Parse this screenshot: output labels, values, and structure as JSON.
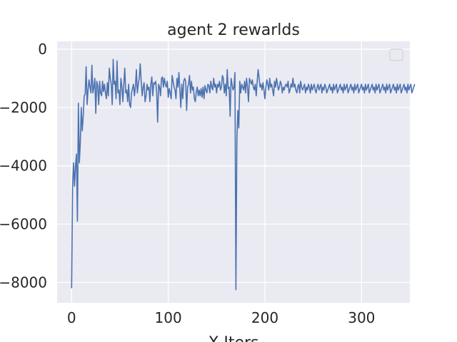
{
  "chart_data": {
    "type": "line",
    "title": "agent 2 rewarlds",
    "xlabel": "X-Iters",
    "ylabel": "",
    "xlim": [
      -15,
      350
    ],
    "ylim": [
      -8700,
      270
    ],
    "xticks": [
      0,
      100,
      200,
      300
    ],
    "yticks": [
      0,
      -2000,
      -4000,
      -6000,
      -8000
    ],
    "xtick_labels": [
      "0",
      "100",
      "200",
      "300"
    ],
    "ytick_labels": [
      "0",
      "−2000",
      "−4000",
      "−6000",
      "−8000"
    ],
    "grid": true,
    "legend": "top-right (empty)",
    "colors": {
      "background": "#eaeaf2",
      "grid": "#ffffff",
      "line": "#4c72b0",
      "text": "#262626"
    },
    "series": [
      {
        "values": [
          -8200,
          -4700,
          -3900,
          -4700,
          -4000,
          -3600,
          -5900,
          -1850,
          -3900,
          -3200,
          -2000,
          -2800,
          -2300,
          -1600,
          -1550,
          -600,
          -1900,
          -1400,
          -1050,
          -1300,
          -1500,
          -550,
          -1500,
          -1300,
          -1000,
          -2200,
          -1100,
          -1250,
          -1900,
          -1100,
          -1500,
          -1600,
          -1100,
          -1450,
          -1200,
          -1500,
          -1700,
          -1150,
          -1600,
          -650,
          -1000,
          -1200,
          -1900,
          -350,
          -1200,
          -1100,
          -1700,
          -400,
          -1500,
          -1400,
          -1900,
          -1000,
          -1300,
          -1800,
          -1200,
          -650,
          -1500,
          -1400,
          -1800,
          -1200,
          -1900,
          -2000,
          -1500,
          -1350,
          -1200,
          -1600,
          -1300,
          -700,
          -1500,
          -1200,
          -1000,
          -500,
          -1100,
          -1600,
          -1300,
          -1150,
          -1800,
          -1600,
          -1200,
          -1400,
          -1300,
          -1800,
          -1200,
          -950,
          -1600,
          -1150,
          -1200,
          -1100,
          -1500,
          -2500,
          -1200,
          -1300,
          -1600,
          -1000,
          -950,
          -1300,
          -1000,
          -1200,
          -1300,
          -1100,
          -1650,
          -1350,
          -1500,
          -1700,
          -900,
          -1100,
          -1300,
          -1400,
          -1700,
          -1000,
          -1300,
          -800,
          -1400,
          -2000,
          -1200,
          -1700,
          -1100,
          -1000,
          -1100,
          -2100,
          -1300,
          -1200,
          -900,
          -1500,
          -1100,
          -1400,
          -1300,
          -1700,
          -1800,
          -1450,
          -1300,
          -1600,
          -1400,
          -1600,
          -1350,
          -1650,
          -1300,
          -1700,
          -1250,
          -1400,
          -1500,
          -1200,
          -1250,
          -1500,
          -1100,
          -1300,
          -1400,
          -1000,
          -1300,
          -1200,
          -1500,
          -1200,
          -1300,
          -1100,
          -1400,
          -1300,
          -900,
          -1000,
          -1500,
          -1200,
          -1600,
          -700,
          -1350,
          -1300,
          -2300,
          -1000,
          -1200,
          -1400,
          -1300,
          -800,
          -8250,
          -3100,
          -2100,
          -2700,
          -1100,
          -1500,
          -1200,
          -1300,
          -1400,
          -1100,
          -1500,
          -1000,
          -1300,
          -1800,
          -1000,
          -1100,
          -1200,
          -1050,
          -1300,
          -1400,
          -1200,
          -1600,
          -1100,
          -700,
          -1000,
          -1300,
          -1200,
          -1400,
          -1150,
          -1400,
          -1700,
          -1300,
          -1050,
          -1200,
          -1400,
          -1000,
          -1300,
          -1200,
          -1400,
          -1600,
          -1100,
          -1300,
          -1000,
          -1200,
          -1400,
          -1300,
          -1100,
          -1200,
          -1500,
          -1300,
          -1400,
          -1250,
          -1200,
          -1300,
          -1100,
          -1500,
          -1400,
          -1200,
          -1300,
          -1000,
          -1300,
          -1200,
          -1400,
          -1500,
          -1300,
          -1200,
          -1500,
          -1100,
          -1300,
          -1400,
          -1300,
          -1200,
          -1500,
          -1300,
          -1400,
          -1200,
          -1300,
          -1500,
          -1200,
          -1400,
          -1300,
          -1200,
          -1400,
          -1500,
          -1300,
          -1200,
          -1400,
          -1300,
          -1200,
          -1500,
          -1300,
          -1400,
          -1200,
          -1300,
          -1500,
          -1400,
          -1300,
          -1200,
          -1400,
          -1300,
          -1500,
          -1200,
          -1400,
          -1300,
          -1200,
          -1500,
          -1400,
          -1300,
          -1200,
          -1400,
          -1300,
          -1500,
          -1200,
          -1400,
          -1300,
          -1200,
          -1500,
          -1400,
          -1300,
          -1200,
          -1400,
          -1300,
          -1500,
          -1200,
          -1400,
          -1300,
          -1200,
          -1500,
          -1400,
          -1300,
          -1200,
          -1400,
          -1300,
          -1500,
          -1200,
          -1400,
          -1300,
          -1200,
          -1500,
          -1400,
          -1300,
          -1200,
          -1400,
          -1300,
          -1500,
          -1200,
          -1400,
          -1300,
          -1200,
          -1500,
          -1400,
          -1300,
          -1200,
          -1400,
          -1300,
          -1500,
          -1200,
          -1400,
          -1300,
          -1200,
          -1500,
          -1400,
          -1300,
          -1200,
          -1400,
          -1300,
          -1500,
          -1200,
          -1400,
          -1300,
          -1200,
          -1500,
          -1400,
          -1300,
          -1200,
          -1400,
          -1300,
          -1500,
          -1200,
          -1400,
          -1300,
          -1200,
          -1500,
          -1400,
          -1300,
          -1200
        ]
      }
    ]
  }
}
